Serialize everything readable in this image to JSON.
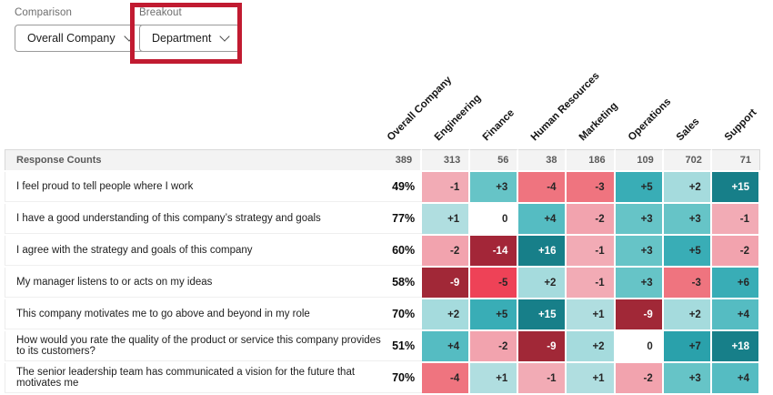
{
  "controls": {
    "comparison": {
      "label": "Comparison",
      "value": "Overall Company"
    },
    "breakout": {
      "label": "Breakout",
      "value": "Department"
    },
    "highlight_color": "#c11b31"
  },
  "table": {
    "response_counts_label": "Response Counts",
    "columns": [
      "Overall Company",
      "Engineering",
      "Finance",
      "Human Resources",
      "Marketing",
      "Operations",
      "Sales",
      "Support"
    ],
    "response_counts": [
      "389",
      "313",
      "56",
      "38",
      "186",
      "109",
      "702",
      "71"
    ],
    "rows": [
      {
        "question": "I feel proud to tell people where I work",
        "overall": "49%",
        "cells": [
          "-1",
          "+3",
          "-4",
          "-3",
          "+5",
          "+2",
          "+15"
        ]
      },
      {
        "question": "I have a good understanding of this company’s strategy and goals",
        "overall": "77%",
        "cells": [
          "+1",
          "0",
          "+4",
          "-2",
          "+3",
          "+3",
          "-1"
        ]
      },
      {
        "question": "I agree with the strategy and goals of this company",
        "overall": "60%",
        "cells": [
          "-2",
          "-14",
          "+16",
          "-1",
          "+3",
          "+5",
          "-2"
        ]
      },
      {
        "question": "My manager listens to or acts on my ideas",
        "overall": "58%",
        "cells": [
          "-9",
          "-5",
          "+2",
          "-1",
          "+3",
          "-3",
          "+6"
        ]
      },
      {
        "question": "This company motivates me to go above and beyond in my role",
        "overall": "70%",
        "cells": [
          "+2",
          "+5",
          "+15",
          "+1",
          "-9",
          "+2",
          "+4"
        ]
      },
      {
        "question": "How would you rate the quality of the product or service this company provides to its customers?",
        "overall": "51%",
        "cells": [
          "+4",
          "-2",
          "-9",
          "+2",
          "0",
          "+7",
          "+18"
        ]
      },
      {
        "question": "The senior leadership team has communicated a vision for the future that motivates me",
        "overall": "70%",
        "cells": [
          "-4",
          "+1",
          "-1",
          "+1",
          "-2",
          "+3",
          "+4"
        ]
      }
    ],
    "cell_colors": {
      "+18": {
        "bg": "#177f89",
        "text": "light"
      },
      "+16": {
        "bg": "#177f89",
        "text": "light"
      },
      "+15": {
        "bg": "#177f89",
        "text": "light"
      },
      "+7": {
        "bg": "#2aa1ab",
        "text": "dark"
      },
      "+6": {
        "bg": "#39adb6",
        "text": "dark"
      },
      "+5": {
        "bg": "#39adb6",
        "text": "dark"
      },
      "+4": {
        "bg": "#55bcc2",
        "text": "dark"
      },
      "+3": {
        "bg": "#66c4c7",
        "text": "dark"
      },
      "+2": {
        "bg": "#a5dbdd",
        "text": "dark"
      },
      "+1": {
        "bg": "#b0dee0",
        "text": "dark"
      },
      "0": {
        "bg": "#ffffff",
        "text": "dark"
      },
      "-1": {
        "bg": "#f2abb5",
        "text": "dark"
      },
      "-2": {
        "bg": "#f2a3ae",
        "text": "dark"
      },
      "-3": {
        "bg": "#ef747f",
        "text": "dark"
      },
      "-4": {
        "bg": "#ef747f",
        "text": "dark"
      },
      "-5": {
        "bg": "#ee4257",
        "text": "dark"
      },
      "-9": {
        "bg": "#a12837",
        "text": "light"
      },
      "-14": {
        "bg": "#a32638",
        "text": "light"
      }
    }
  }
}
